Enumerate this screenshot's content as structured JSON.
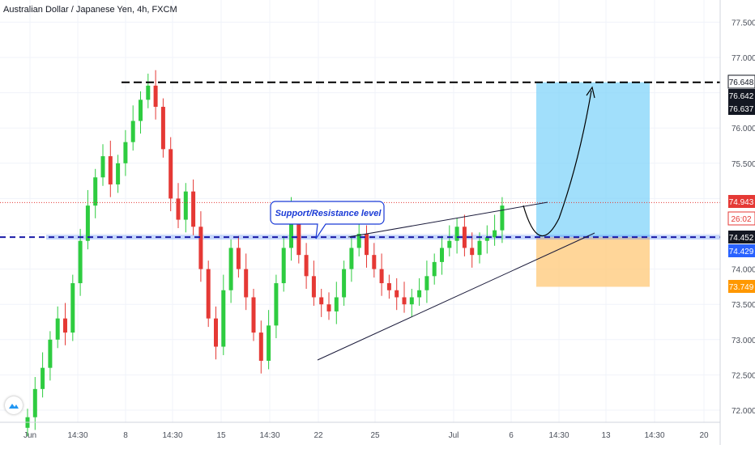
{
  "header": {
    "ticker_label": "Australian Dollar / Japanese Yen, 4h, FXCM"
  },
  "colors": {
    "up": "#26a69a",
    "up_body": "#2ecc40",
    "down": "#e53935",
    "target_box": "#81d4fa",
    "stop_box": "#ffcc80",
    "support_band": "#5c8df6",
    "current_price": "#e53935"
  },
  "chart_data": {
    "type": "candlestick",
    "symbol": "Australian Dollar / Japanese Yen",
    "timeframe": "4h",
    "source": "FXCM",
    "ylim": [
      71.85,
      77.75
    ],
    "y_ticks": [
      72.0,
      72.5,
      73.0,
      73.5,
      74.0,
      74.5,
      75.0,
      75.5,
      76.0,
      76.5,
      77.0,
      77.5
    ],
    "y_tick_labels": [
      "72.000",
      "72.500",
      "73.000",
      "73.500",
      "74.000",
      "74.500",
      "75.000",
      "75.500",
      "76.000",
      "76.500",
      "77.000",
      "77.500"
    ],
    "x_tick_labels": [
      "Jun",
      "14:30",
      "8",
      "14:30",
      "15",
      "14:30",
      "22",
      "25",
      "Jul",
      "6",
      "14:30",
      "13",
      "14:30",
      "20"
    ],
    "price_labels": [
      {
        "value": "76.648",
        "style": "white"
      },
      {
        "value": "76.642",
        "style": "black"
      },
      {
        "value": "76.637",
        "style": "black"
      },
      {
        "value": "74.943",
        "style": "red"
      },
      {
        "value": "26:02",
        "style": "red-light"
      },
      {
        "value": "74.452",
        "style": "black"
      },
      {
        "value": "74.429",
        "style": "blue"
      },
      {
        "value": "73.749",
        "style": "orange"
      }
    ],
    "levels": {
      "resistance": 76.648,
      "current": 74.943,
      "support": 74.452,
      "support_low": 74.429,
      "stop": 73.749
    },
    "annotation": "Support/Resistance level",
    "closes": [
      71.9,
      72.3,
      72.6,
      73.0,
      73.3,
      73.1,
      73.8,
      74.4,
      74.9,
      75.3,
      75.6,
      75.2,
      75.5,
      75.8,
      76.1,
      76.4,
      76.6,
      76.3,
      75.7,
      75.0,
      74.7,
      75.1,
      74.6,
      74.0,
      73.3,
      72.9,
      73.7,
      74.3,
      74.0,
      73.6,
      73.1,
      72.7,
      73.2,
      73.8,
      74.3,
      74.8,
      74.2,
      73.9,
      73.6,
      73.5,
      73.4,
      73.6,
      74.0,
      74.3,
      74.5,
      74.2,
      74.0,
      73.8,
      73.7,
      73.6,
      73.5,
      73.6,
      73.7,
      73.9,
      74.1,
      74.3,
      74.4,
      74.6,
      74.3,
      74.2,
      74.4,
      74.45,
      74.55,
      74.9
    ]
  }
}
